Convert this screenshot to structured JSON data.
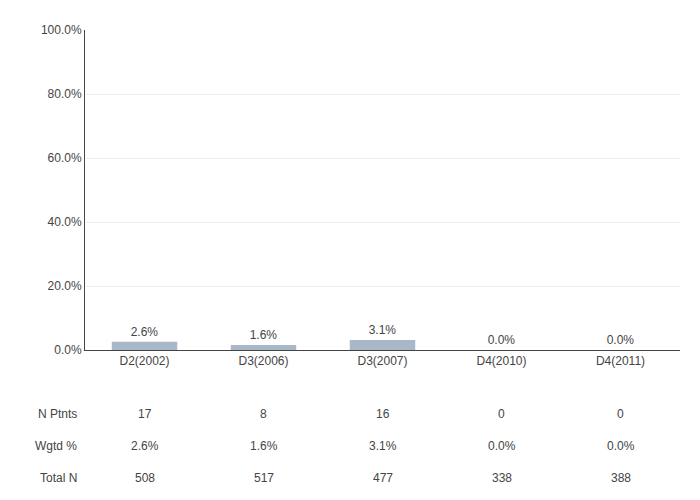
{
  "chart_data": {
    "type": "bar",
    "categories": [
      "D2(2002)",
      "D3(2006)",
      "D3(2007)",
      "D4(2010)",
      "D4(2011)"
    ],
    "values": [
      2.6,
      1.6,
      3.1,
      0.0,
      0.0
    ],
    "value_labels": [
      "2.6%",
      "1.6%",
      "3.1%",
      "0.0%",
      "0.0%"
    ],
    "data_labels": true,
    "color": "#a8b8c8",
    "ylim": [
      0,
      100
    ],
    "yticks": [
      {
        "value": 0,
        "label": "0.0%"
      },
      {
        "value": 20.0,
        "label": "20.0%"
      },
      {
        "value": 40.0,
        "label": "40.0%"
      },
      {
        "value": 60.0,
        "label": "60.0%"
      },
      {
        "value": 80.0,
        "label": "80.0%"
      },
      {
        "value": 100.0,
        "label": "100.0%"
      }
    ],
    "grid": true,
    "table": [
      {
        "label": "N Ptnts",
        "cells": [
          "17",
          "8",
          "16",
          "0",
          "0"
        ]
      },
      {
        "label": "Wgtd %",
        "cells": [
          "2.6%",
          "1.6%",
          "3.1%",
          "0.0%",
          "0.0%"
        ]
      },
      {
        "label": "Total N",
        "cells": [
          "508",
          "517",
          "477",
          "338",
          "388"
        ]
      }
    ]
  }
}
